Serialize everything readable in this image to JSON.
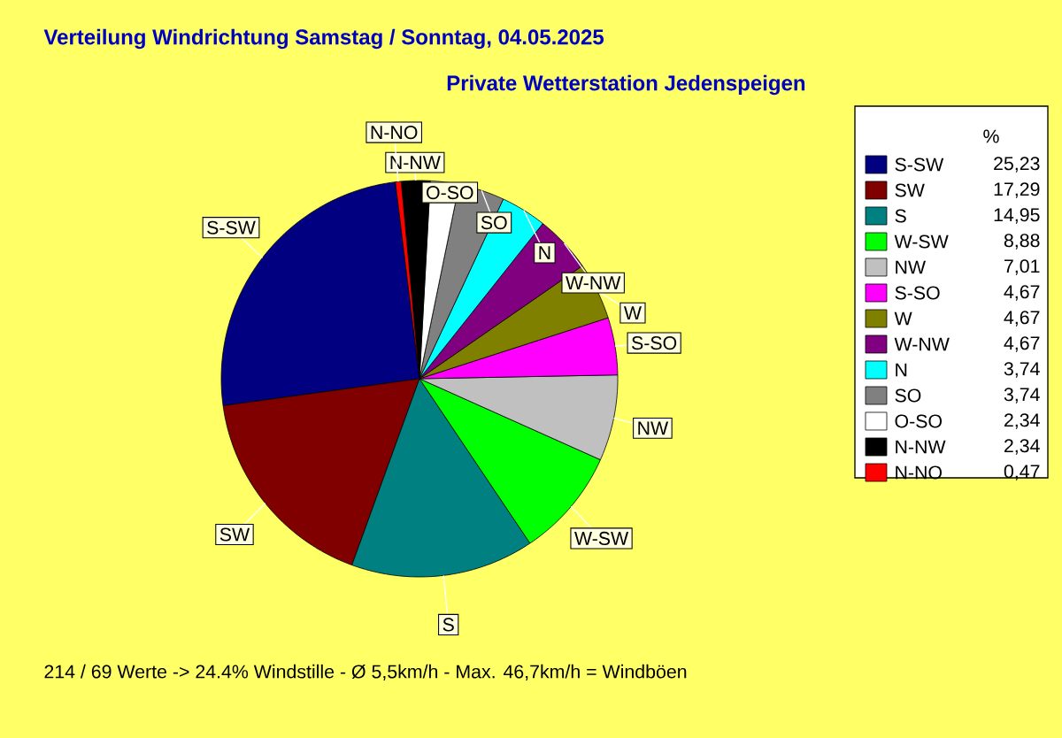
{
  "chart_data": {
    "type": "pie",
    "title": "Verteilung Windrichtung  Samstag / Sonntag, 04.05.2025",
    "subtitle": "Private Wetterstation Jedenspeigen",
    "legend_title": "%",
    "legend": "right",
    "categories": [
      "S-SW",
      "SW",
      "S",
      "W-SW",
      "NW",
      "S-SO",
      "W",
      "W-NW",
      "N",
      "SO",
      "O-SO",
      "N-NW",
      "N-NO"
    ],
    "values": [
      25.23,
      17.29,
      14.95,
      8.88,
      7.01,
      4.67,
      4.67,
      4.67,
      3.74,
      3.74,
      2.34,
      2.34,
      0.47
    ],
    "value_labels": [
      "25,23",
      "17,29",
      "14,95",
      "8,88",
      "7,01",
      "4,67",
      "4,67",
      "4,67",
      "3,74",
      "3,74",
      "2,34",
      "2,34",
      "0,47"
    ],
    "colors": [
      "#000080",
      "#800000",
      "#008080",
      "#00ff00",
      "#c0c0c0",
      "#ff00ff",
      "#808000",
      "#800080",
      "#00ffff",
      "#808080",
      "#ffffff",
      "#000000",
      "#ff0000"
    ],
    "annotations": [
      "214 / 69 Werte  -> 24.4% Windstille   -   Ø 5,5km/h  -  Max. 46,7km/h = Windböen"
    ]
  }
}
